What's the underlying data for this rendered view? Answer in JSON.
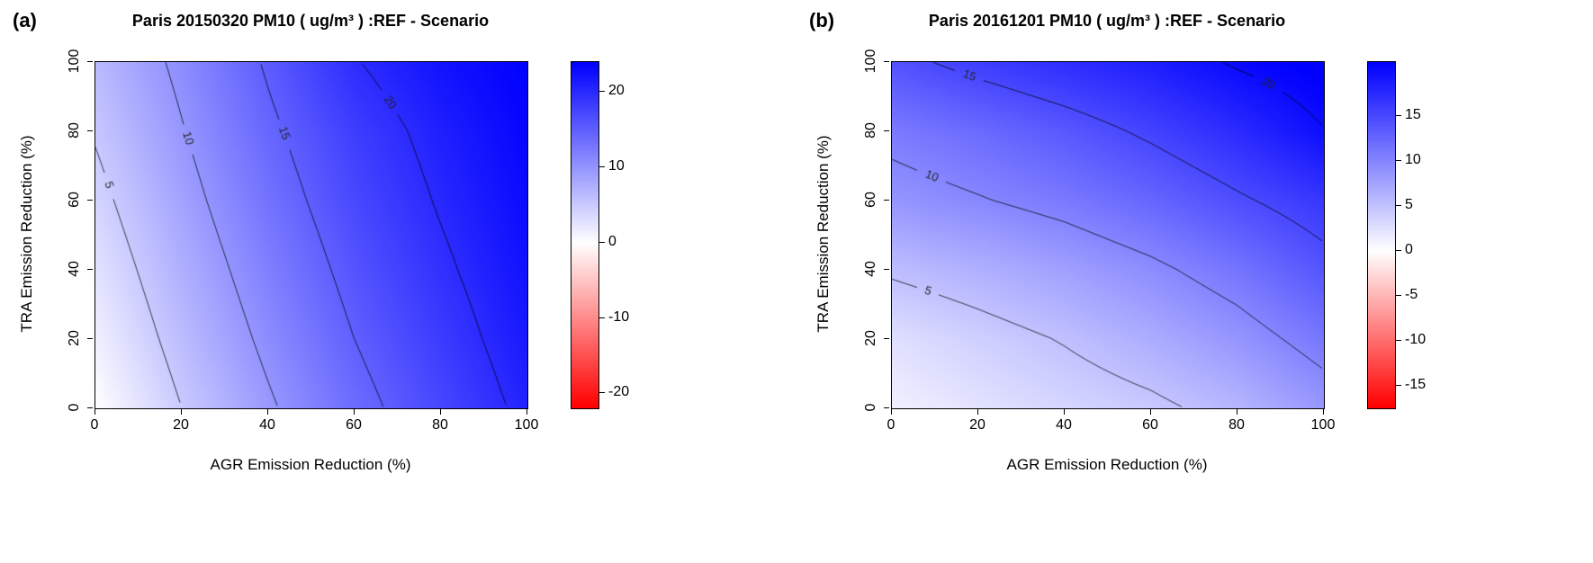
{
  "figure": {
    "kind": "filled-contour-pair",
    "background": "#ffffff"
  },
  "chart_data": [
    {
      "panel_label": "(a)",
      "type": "heatmap",
      "title": "Paris 20150320 PM10 ( ug/m³ ) :REF - Scenario",
      "xlabel": "AGR Emission Reduction (%)",
      "ylabel": "TRA Emission Reduction (%)",
      "x": [
        0,
        20,
        40,
        60,
        80,
        100
      ],
      "y": [
        0,
        20,
        40,
        60,
        80,
        100
      ],
      "z": [
        [
          0.0,
          5.0,
          9.5,
          13.8,
          17.3,
          20.8
        ],
        [
          1.4,
          6.3,
          10.8,
          15.0,
          18.4,
          21.7
        ],
        [
          2.7,
          7.5,
          12.0,
          16.1,
          19.4,
          22.4
        ],
        [
          4.0,
          8.7,
          13.2,
          17.2,
          20.3,
          23.0
        ],
        [
          5.3,
          9.8,
          14.3,
          18.2,
          21.1,
          23.5
        ],
        [
          6.5,
          10.8,
          15.4,
          19.8,
          22.3,
          24.0
        ]
      ],
      "zlim": [
        -22,
        24
      ],
      "xticks": [
        0,
        20,
        40,
        60,
        80,
        100
      ],
      "yticks": [
        0,
        20,
        40,
        60,
        80,
        100
      ],
      "colorbar_ticks": [
        -20,
        -10,
        0,
        10,
        20
      ],
      "contour_levels": [
        5,
        10,
        15,
        20
      ],
      "contour_labels": [
        {
          "level": 5,
          "t": 0.15
        },
        {
          "level": 10,
          "t": 0.22
        },
        {
          "level": 15,
          "t": 0.2
        },
        {
          "level": 20,
          "t": 0.13
        }
      ],
      "palette": {
        "min_color": "#FF0000",
        "mid_color": "#FFFFFF",
        "max_color": "#0000FF"
      }
    },
    {
      "panel_label": "(b)",
      "type": "heatmap",
      "title": "Paris 20161201 PM10 ( ug/m³ ) :REF - Scenario",
      "xlabel": "AGR Emission Reduction (%)",
      "ylabel": "TRA Emission Reduction (%)",
      "x": [
        0,
        20,
        40,
        60,
        80,
        100
      ],
      "y": [
        0,
        20,
        40,
        60,
        80,
        100
      ],
      "z": [
        [
          1.2,
          2.3,
          3.4,
          4.4,
          6.0,
          8.5
        ],
        [
          2.6,
          3.9,
          5.2,
          6.8,
          8.7,
          11.2
        ],
        [
          5.4,
          6.5,
          7.8,
          9.4,
          11.4,
          14.0
        ],
        [
          8.7,
          9.8,
          11.0,
          12.6,
          14.6,
          16.5
        ],
        [
          10.9,
          12.2,
          13.7,
          15.5,
          17.5,
          19.9
        ],
        [
          14.2,
          15.9,
          17.3,
          18.6,
          20.3,
          21.5
        ]
      ],
      "zlim": [
        -17.5,
        21
      ],
      "xticks": [
        0,
        20,
        40,
        60,
        80,
        100
      ],
      "yticks": [
        0,
        20,
        40,
        60,
        80,
        100
      ],
      "colorbar_ticks": [
        -15,
        -10,
        -5,
        0,
        5,
        10,
        15
      ],
      "contour_levels": [
        5,
        10,
        15,
        20
      ],
      "contour_labels": [
        {
          "level": 5,
          "t": 0.12
        },
        {
          "level": 10,
          "t": 0.09
        },
        {
          "level": 15,
          "t": 0.09
        },
        {
          "level": 20,
          "t": 0.42
        }
      ],
      "palette": {
        "min_color": "#FF0000",
        "mid_color": "#FFFFFF",
        "max_color": "#0000FF"
      }
    }
  ]
}
